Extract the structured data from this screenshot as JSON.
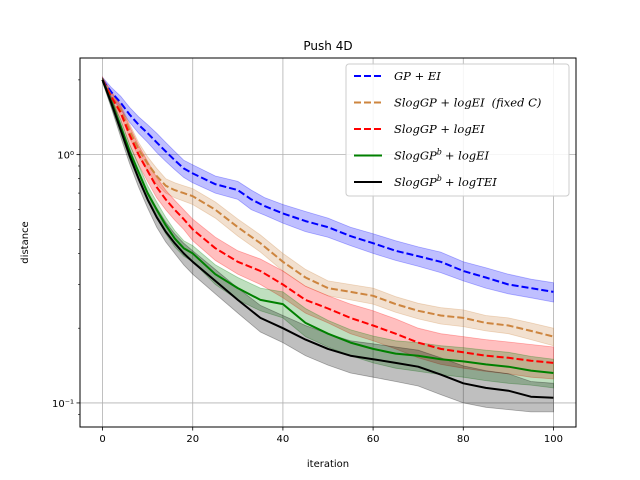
{
  "chart_data": {
    "type": "line",
    "title": "Push 4D",
    "xlabel": "iteration",
    "ylabel": "distance",
    "xlim": [
      -5,
      105
    ],
    "ylim": [
      0.08,
      2.45
    ],
    "yscale": "log",
    "grid": true,
    "legend_position": "top-right",
    "x_ticks": [
      0,
      20,
      40,
      60,
      80,
      100
    ],
    "y_ticks": [
      {
        "value": 1.0,
        "label": "10⁰"
      },
      {
        "value": 0.1,
        "label": "10⁻¹"
      }
    ],
    "series": [
      {
        "name": "GP + EI",
        "legend_main": "GP + EI",
        "legend_sup": "",
        "legend_rest": "",
        "color": "#0000ff",
        "dash": "dashed",
        "x": [
          0,
          2,
          4,
          6,
          8,
          10,
          12,
          14,
          16,
          18,
          20,
          25,
          30,
          33,
          36,
          40,
          45,
          50,
          55,
          60,
          65,
          70,
          75,
          80,
          85,
          90,
          95,
          100
        ],
        "y": [
          2.0,
          1.78,
          1.62,
          1.45,
          1.32,
          1.22,
          1.12,
          1.03,
          0.95,
          0.88,
          0.84,
          0.76,
          0.72,
          0.66,
          0.62,
          0.58,
          0.54,
          0.51,
          0.47,
          0.44,
          0.41,
          0.39,
          0.37,
          0.34,
          0.32,
          0.3,
          0.29,
          0.28
        ],
        "lo": [
          1.95,
          1.7,
          1.52,
          1.35,
          1.22,
          1.12,
          1.02,
          0.94,
          0.87,
          0.81,
          0.77,
          0.7,
          0.66,
          0.6,
          0.57,
          0.53,
          0.49,
          0.465,
          0.43,
          0.4,
          0.375,
          0.355,
          0.335,
          0.31,
          0.29,
          0.275,
          0.265,
          0.255
        ],
        "hi": [
          2.05,
          1.86,
          1.72,
          1.55,
          1.42,
          1.32,
          1.22,
          1.12,
          1.03,
          0.95,
          0.91,
          0.82,
          0.78,
          0.72,
          0.67,
          0.63,
          0.59,
          0.555,
          0.51,
          0.48,
          0.45,
          0.425,
          0.405,
          0.37,
          0.35,
          0.33,
          0.315,
          0.305
        ]
      },
      {
        "name": "SlogGP + logEI (fixed C)",
        "legend_main": "SlogGP + logEI",
        "legend_sup": "",
        "legend_rest": "(fixed C)",
        "color": "#cd853f",
        "dash": "dashed",
        "x": [
          0,
          2,
          4,
          6,
          8,
          10,
          12,
          14,
          16,
          18,
          20,
          25,
          30,
          35,
          40,
          45,
          50,
          55,
          60,
          65,
          70,
          75,
          80,
          85,
          90,
          95,
          100
        ],
        "y": [
          2.0,
          1.72,
          1.52,
          1.25,
          1.05,
          0.92,
          0.82,
          0.75,
          0.72,
          0.7,
          0.68,
          0.6,
          0.51,
          0.44,
          0.37,
          0.32,
          0.29,
          0.28,
          0.27,
          0.25,
          0.235,
          0.225,
          0.22,
          0.21,
          0.205,
          0.195,
          0.185
        ],
        "lo": [
          1.96,
          1.65,
          1.44,
          1.17,
          0.98,
          0.86,
          0.76,
          0.7,
          0.67,
          0.65,
          0.63,
          0.555,
          0.47,
          0.405,
          0.34,
          0.295,
          0.27,
          0.26,
          0.25,
          0.232,
          0.218,
          0.208,
          0.203,
          0.195,
          0.19,
          0.18,
          0.17
        ],
        "hi": [
          2.04,
          1.79,
          1.6,
          1.33,
          1.12,
          0.98,
          0.88,
          0.8,
          0.77,
          0.75,
          0.73,
          0.645,
          0.55,
          0.475,
          0.4,
          0.345,
          0.31,
          0.3,
          0.29,
          0.268,
          0.252,
          0.242,
          0.237,
          0.225,
          0.22,
          0.21,
          0.2
        ]
      },
      {
        "name": "SlogGP + logEI",
        "legend_main": "SlogGP + logEI",
        "legend_sup": "",
        "legend_rest": "",
        "color": "#ff0000",
        "dash": "dashed",
        "x": [
          0,
          2,
          4,
          6,
          8,
          10,
          12,
          14,
          16,
          18,
          20,
          25,
          30,
          35,
          40,
          45,
          50,
          55,
          60,
          65,
          70,
          75,
          80,
          85,
          90,
          95,
          100
        ],
        "y": [
          2.0,
          1.7,
          1.48,
          1.2,
          1.0,
          0.86,
          0.74,
          0.66,
          0.6,
          0.55,
          0.5,
          0.42,
          0.37,
          0.34,
          0.3,
          0.26,
          0.24,
          0.22,
          0.205,
          0.19,
          0.175,
          0.165,
          0.16,
          0.155,
          0.152,
          0.148,
          0.145
        ],
        "lo": [
          1.95,
          1.62,
          1.39,
          1.1,
          0.91,
          0.78,
          0.67,
          0.6,
          0.545,
          0.5,
          0.45,
          0.375,
          0.33,
          0.3,
          0.265,
          0.23,
          0.21,
          0.19,
          0.178,
          0.165,
          0.152,
          0.143,
          0.138,
          0.134,
          0.131,
          0.127,
          0.125
        ],
        "hi": [
          2.05,
          1.78,
          1.57,
          1.3,
          1.09,
          0.94,
          0.81,
          0.72,
          0.655,
          0.6,
          0.55,
          0.465,
          0.41,
          0.38,
          0.34,
          0.295,
          0.27,
          0.25,
          0.235,
          0.218,
          0.2,
          0.19,
          0.185,
          0.18,
          0.176,
          0.172,
          0.168
        ]
      },
      {
        "name": "SlogGP^b + logEI",
        "legend_main": "SlogGP",
        "legend_sup": "b",
        "legend_rest": "+ logEI",
        "color": "#008000",
        "dash": "solid",
        "x": [
          0,
          2,
          4,
          6,
          8,
          10,
          12,
          14,
          16,
          18,
          20,
          25,
          30,
          35,
          40,
          45,
          50,
          55,
          60,
          65,
          70,
          75,
          80,
          85,
          90,
          95,
          100
        ],
        "y": [
          2.0,
          1.62,
          1.3,
          1.03,
          0.85,
          0.7,
          0.6,
          0.52,
          0.46,
          0.42,
          0.4,
          0.33,
          0.29,
          0.26,
          0.25,
          0.21,
          0.19,
          0.175,
          0.165,
          0.158,
          0.155,
          0.15,
          0.147,
          0.143,
          0.14,
          0.135,
          0.132
        ],
        "lo": [
          1.96,
          1.55,
          1.22,
          0.96,
          0.79,
          0.65,
          0.555,
          0.48,
          0.425,
          0.39,
          0.37,
          0.3,
          0.26,
          0.235,
          0.22,
          0.185,
          0.168,
          0.155,
          0.145,
          0.138,
          0.134,
          0.13,
          0.127,
          0.123,
          0.12,
          0.118,
          0.115
        ],
        "hi": [
          2.04,
          1.69,
          1.38,
          1.1,
          0.91,
          0.75,
          0.645,
          0.56,
          0.495,
          0.45,
          0.43,
          0.36,
          0.32,
          0.29,
          0.28,
          0.24,
          0.215,
          0.197,
          0.186,
          0.178,
          0.175,
          0.17,
          0.167,
          0.163,
          0.16,
          0.154,
          0.15
        ]
      },
      {
        "name": "SlogGP^b + logTEI",
        "legend_main": "SlogGP",
        "legend_sup": "b",
        "legend_rest": "+ logTEI",
        "color": "#000000",
        "dash": "solid",
        "x": [
          0,
          2,
          4,
          6,
          8,
          10,
          12,
          14,
          16,
          18,
          20,
          25,
          30,
          35,
          40,
          45,
          50,
          55,
          60,
          65,
          70,
          75,
          80,
          85,
          90,
          95,
          100
        ],
        "y": [
          2.0,
          1.6,
          1.26,
          0.99,
          0.8,
          0.66,
          0.56,
          0.49,
          0.44,
          0.4,
          0.37,
          0.31,
          0.26,
          0.22,
          0.2,
          0.18,
          0.165,
          0.155,
          0.15,
          0.145,
          0.14,
          0.13,
          0.12,
          0.115,
          0.112,
          0.106,
          0.105
        ],
        "lo": [
          1.96,
          1.53,
          1.18,
          0.92,
          0.74,
          0.61,
          0.51,
          0.445,
          0.4,
          0.36,
          0.33,
          0.275,
          0.23,
          0.193,
          0.175,
          0.155,
          0.142,
          0.132,
          0.127,
          0.122,
          0.117,
          0.108,
          0.1,
          0.096,
          0.094,
          0.092,
          0.092
        ],
        "hi": [
          2.04,
          1.67,
          1.34,
          1.06,
          0.86,
          0.71,
          0.61,
          0.535,
          0.48,
          0.44,
          0.41,
          0.345,
          0.29,
          0.247,
          0.225,
          0.205,
          0.19,
          0.178,
          0.173,
          0.168,
          0.163,
          0.152,
          0.141,
          0.135,
          0.131,
          0.122,
          0.12
        ]
      }
    ]
  }
}
